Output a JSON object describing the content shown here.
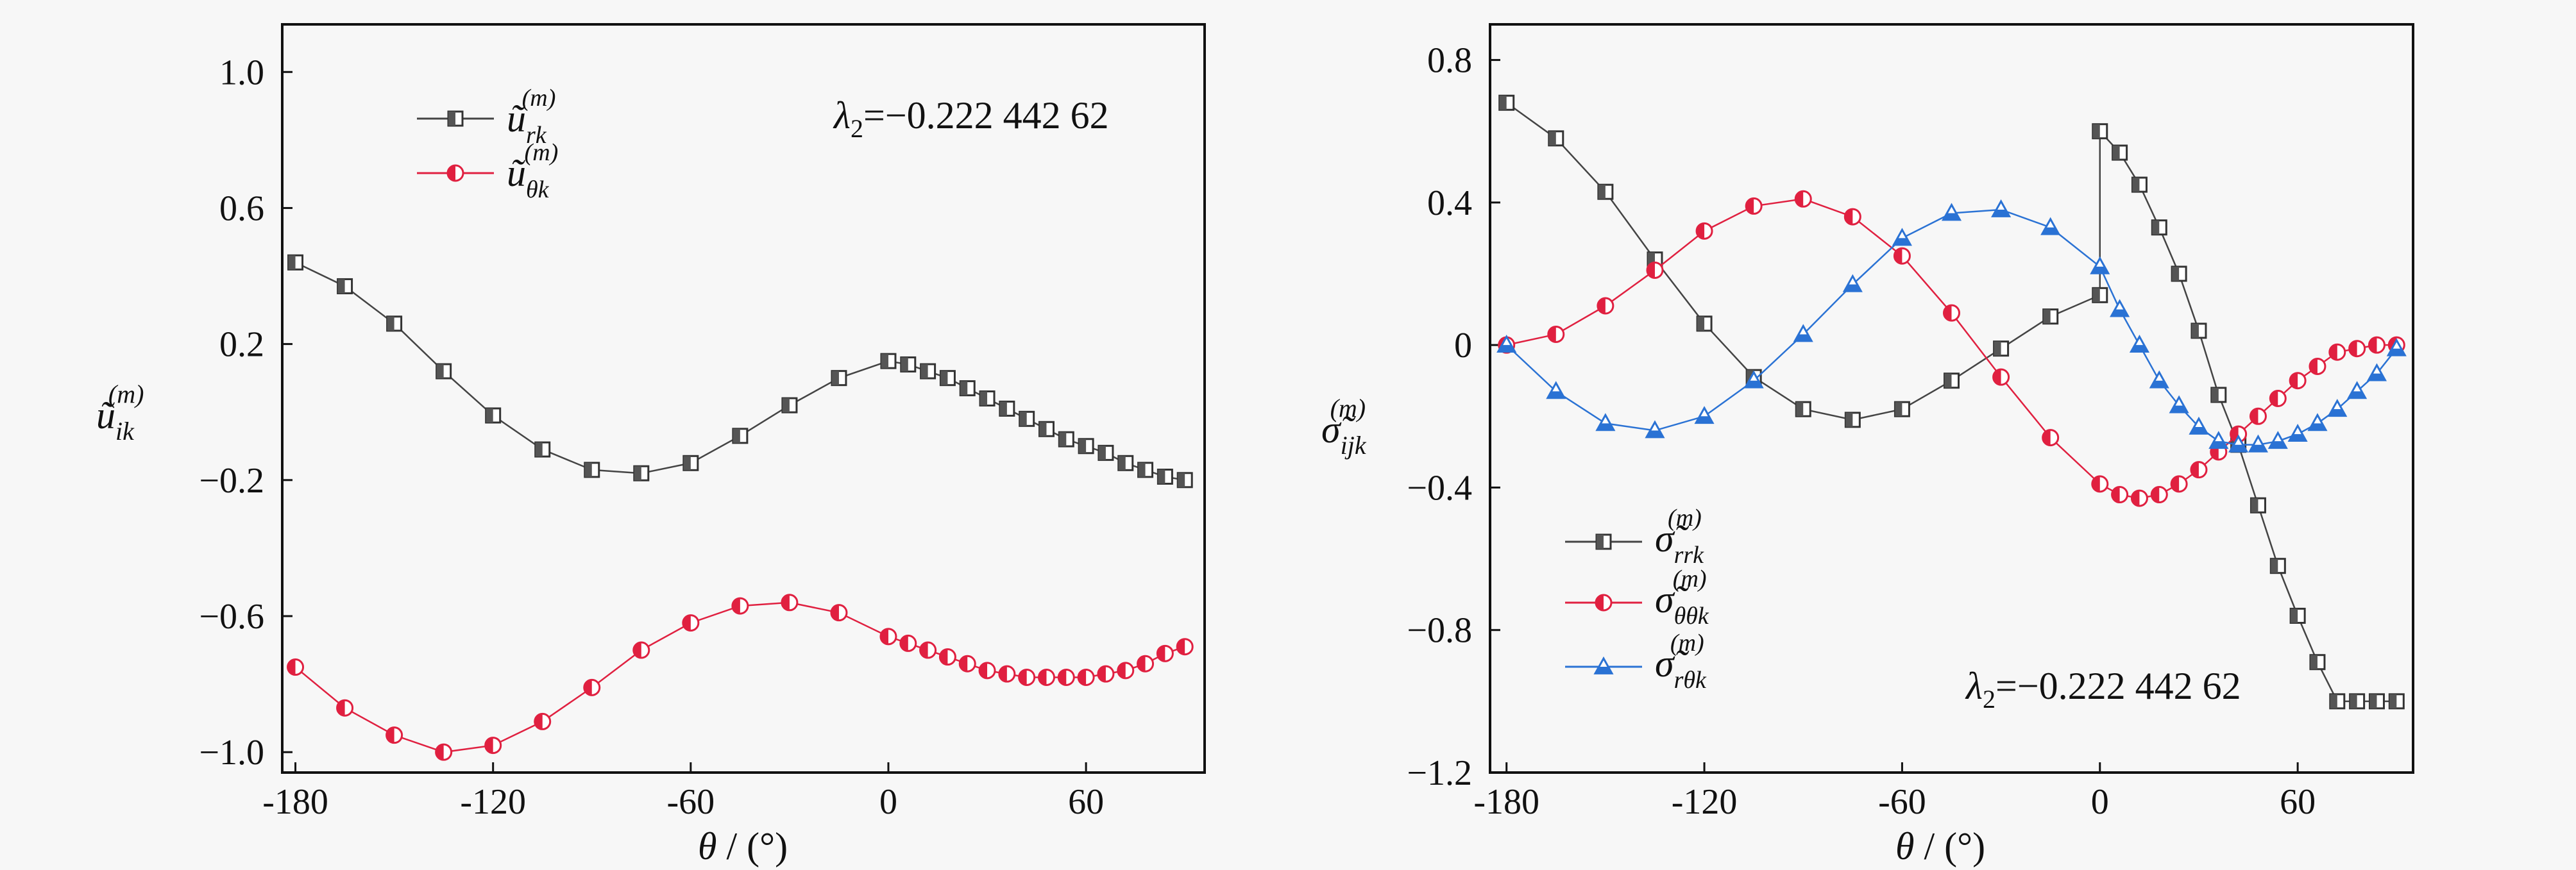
{
  "colors": {
    "black": "#555555",
    "red": "#e02040",
    "blue": "#2a72d4",
    "background": "#f7f7f7"
  },
  "chart_data": [
    {
      "type": "line",
      "x_axis": {
        "label_symbol": "θ",
        "label_unit": "(°)",
        "ticks": [
          "-180",
          "-120",
          "-60",
          "0",
          "60"
        ],
        "xlim": [
          -184,
          96
        ]
      },
      "y_axis": {
        "label_symbol": "ũ",
        "label_sub": "ik",
        "label_sup": "(m)",
        "ticks": [
          "1.0",
          "0.6",
          "0.2",
          "−0.2",
          "−0.6",
          "−1.0"
        ],
        "ylim": [
          -1.06,
          1.14
        ]
      },
      "annotation": {
        "lambda_symbol": "λ",
        "lambda_sub": "2",
        "lambda_value": "=−0.222 442 62"
      },
      "legend": {
        "position": "top-left"
      },
      "series": [
        {
          "name_symbol": "ũ",
          "name_sub": "rk",
          "name_sup": "(m)",
          "color": "black",
          "marker": "square-half",
          "x": [
            -180,
            -165,
            -150,
            -135,
            -120,
            -105,
            -90,
            -75,
            -60,
            -45,
            -30,
            -15,
            0,
            6,
            12,
            18,
            24,
            30,
            36,
            42,
            48,
            54,
            60,
            66,
            72,
            78,
            84,
            90
          ],
          "y": [
            0.44,
            0.37,
            0.26,
            0.12,
            -0.01,
            -0.11,
            -0.17,
            -0.18,
            -0.15,
            -0.07,
            0.02,
            0.1,
            0.15,
            0.14,
            0.12,
            0.1,
            0.07,
            0.04,
            0.01,
            -0.02,
            -0.05,
            -0.08,
            -0.1,
            -0.12,
            -0.15,
            -0.17,
            -0.19,
            -0.2
          ]
        },
        {
          "name_symbol": "ũ",
          "name_sub": "θk",
          "name_sup": "(m)",
          "color": "red",
          "marker": "circle-half",
          "x": [
            -180,
            -165,
            -150,
            -135,
            -120,
            -105,
            -90,
            -75,
            -60,
            -45,
            -30,
            -15,
            0,
            6,
            12,
            18,
            24,
            30,
            36,
            42,
            48,
            54,
            60,
            66,
            72,
            78,
            84,
            90
          ],
          "y": [
            -0.75,
            -0.87,
            -0.95,
            -1.0,
            -0.98,
            -0.91,
            -0.81,
            -0.7,
            -0.62,
            -0.57,
            -0.56,
            -0.59,
            -0.66,
            -0.68,
            -0.7,
            -0.72,
            -0.74,
            -0.76,
            -0.77,
            -0.78,
            -0.78,
            -0.78,
            -0.78,
            -0.77,
            -0.76,
            -0.74,
            -0.71,
            -0.69
          ]
        }
      ]
    },
    {
      "type": "line",
      "x_axis": {
        "label_symbol": "θ",
        "label_unit": "(°)",
        "ticks": [
          "-180",
          "-120",
          "-60",
          "0",
          "60"
        ],
        "xlim": [
          -185,
          95
        ]
      },
      "y_axis": {
        "label_symbol": "σ̃",
        "label_sub": "ijk",
        "label_sup": "(m)",
        "ticks": [
          "0.8",
          "0.4",
          "0",
          "−0.4",
          "−0.8",
          "−1.2"
        ],
        "ylim": [
          -1.2,
          0.9
        ]
      },
      "annotation": {
        "lambda_symbol": "λ",
        "lambda_sub": "2",
        "lambda_value": "=−0.222 442 62"
      },
      "legend": {
        "position": "bottom-left"
      },
      "series": [
        {
          "name_symbol": "σ̃",
          "name_sub": "rrk",
          "name_sup": "(m)",
          "color": "black",
          "marker": "square-half",
          "x": [
            -180,
            -165,
            -150,
            -135,
            -120,
            -105,
            -90,
            -75,
            -60,
            -45,
            -30,
            -15,
            0,
            0,
            6,
            12,
            18,
            24,
            30,
            36,
            42,
            48,
            54,
            60,
            66,
            72,
            78,
            84,
            90
          ],
          "y": [
            0.68,
            0.58,
            0.43,
            0.24,
            0.06,
            -0.09,
            -0.18,
            -0.21,
            -0.18,
            -0.1,
            -0.01,
            0.08,
            0.14,
            0.6,
            0.54,
            0.45,
            0.33,
            0.2,
            0.04,
            -0.14,
            -0.28,
            -0.45,
            -0.62,
            -0.76,
            -0.89,
            -1.0,
            -1.0,
            -1.0,
            -1.0
          ]
        },
        {
          "name_symbol": "σ̃",
          "name_sub": "θθk",
          "name_sup": "(m)",
          "color": "red",
          "marker": "circle-half",
          "x": [
            -180,
            -165,
            -150,
            -135,
            -120,
            -105,
            -90,
            -75,
            -60,
            -45,
            -30,
            -15,
            0,
            6,
            12,
            18,
            24,
            30,
            36,
            42,
            48,
            54,
            60,
            66,
            72,
            78,
            84,
            90
          ],
          "y": [
            0,
            0.03,
            0.11,
            0.21,
            0.32,
            0.39,
            0.41,
            0.36,
            0.25,
            0.09,
            -0.09,
            -0.26,
            -0.39,
            -0.42,
            -0.43,
            -0.42,
            -0.39,
            -0.35,
            -0.3,
            -0.25,
            -0.2,
            -0.15,
            -0.1,
            -0.06,
            -0.02,
            -0.01,
            0,
            0
          ]
        },
        {
          "name_symbol": "σ̃",
          "name_sub": "rθk",
          "name_sup": "(m)",
          "color": "blue",
          "marker": "triangle",
          "x": [
            -180,
            -165,
            -150,
            -135,
            -120,
            -105,
            -90,
            -75,
            -60,
            -45,
            -30,
            -15,
            0,
            6,
            12,
            18,
            24,
            30,
            36,
            42,
            48,
            54,
            60,
            66,
            72,
            78,
            84,
            90
          ],
          "y": [
            0,
            -0.13,
            -0.22,
            -0.24,
            -0.2,
            -0.1,
            0.03,
            0.17,
            0.3,
            0.37,
            0.38,
            0.33,
            0.22,
            0.1,
            0,
            -0.1,
            -0.17,
            -0.23,
            -0.27,
            -0.28,
            -0.28,
            -0.27,
            -0.25,
            -0.22,
            -0.18,
            -0.13,
            -0.08,
            -0.01
          ]
        }
      ]
    }
  ]
}
